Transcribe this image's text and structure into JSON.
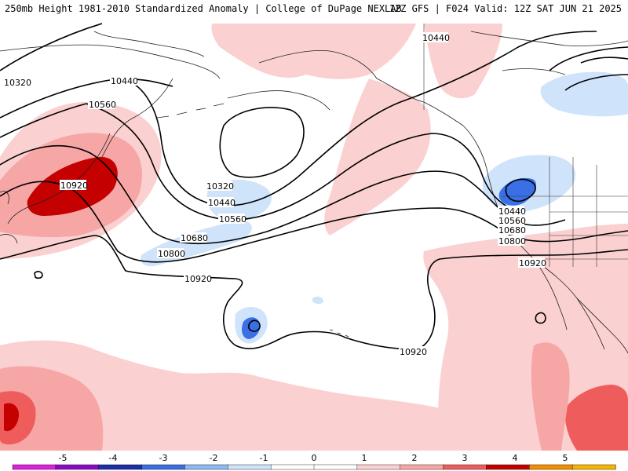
{
  "header": {
    "title_left": "250mb Height 1981-2010 Standardized Anomaly | College of DuPage NEXLAB",
    "title_right": "12Z GFS | F024 Valid: 12Z SAT JUN 21 2025"
  },
  "contour_labels": {
    "c10320_nw": "10320",
    "c10440_nw": "10440",
    "c10560_nw": "10560",
    "c10920_japan": "10920",
    "c10320_gulf": "10320",
    "c10440_gulf": "10440",
    "c10560_mid": "10560",
    "c10680_mid": "10680",
    "c10800_mid": "10800",
    "c10920_mid": "10920",
    "c10920_south": "10920",
    "c10440_ne": "10440",
    "c10440_wc": "10440",
    "c10560_wc": "10560",
    "c10680_wc": "10680",
    "c10800_wc": "10800",
    "c10920_wc": "10920"
  },
  "colorbar": {
    "ticks": [
      "-5",
      "-4",
      "-3",
      "-2",
      "-1",
      "0",
      "1",
      "2",
      "3",
      "4",
      "5"
    ],
    "colors": [
      "#e01ee0",
      "#8a0ac2",
      "#1a2fa8",
      "#3a6fe6",
      "#8fb8f4",
      "#cfe3fb",
      "#ffffff",
      "#ffffff",
      "#fbd0d0",
      "#f7a6a6",
      "#ef5c5c",
      "#c40000",
      "#f28c00",
      "#f5b400"
    ]
  }
}
